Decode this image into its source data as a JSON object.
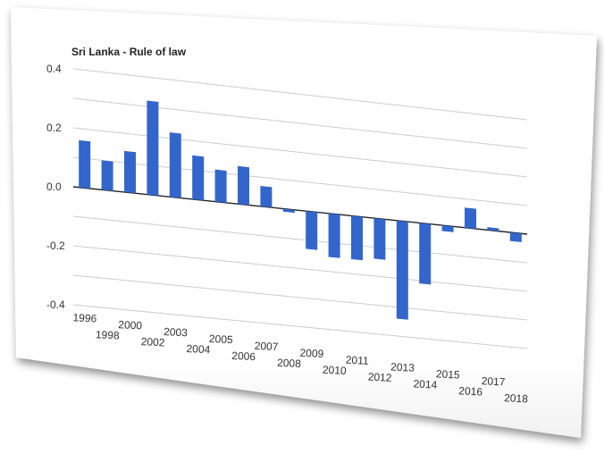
{
  "chart_data": {
    "type": "bar",
    "title": "Sri Lanka - Rule of law",
    "xlabel": "",
    "ylabel": "",
    "ylim": [
      -0.45,
      0.45
    ],
    "yticks": [
      "0.4",
      "0.2",
      "0.0",
      "-0.2",
      "-0.4"
    ],
    "ytick_values": [
      0.4,
      0.2,
      0.0,
      -0.2,
      -0.4
    ],
    "grid": true,
    "legend": "none",
    "bar_color": "#3366cc",
    "categories": [
      "1996",
      "1998",
      "2000",
      "2002",
      "2003",
      "2004",
      "2005",
      "2006",
      "2007",
      "2008",
      "2009",
      "2010",
      "2011",
      "2012",
      "2013",
      "2014",
      "2015",
      "2016",
      "2017",
      "2018"
    ],
    "values": [
      0.16,
      0.1,
      0.14,
      0.32,
      0.22,
      0.15,
      0.11,
      0.13,
      0.07,
      -0.01,
      -0.13,
      -0.15,
      -0.15,
      -0.14,
      -0.34,
      -0.21,
      -0.02,
      0.07,
      0.01,
      -0.03
    ]
  }
}
